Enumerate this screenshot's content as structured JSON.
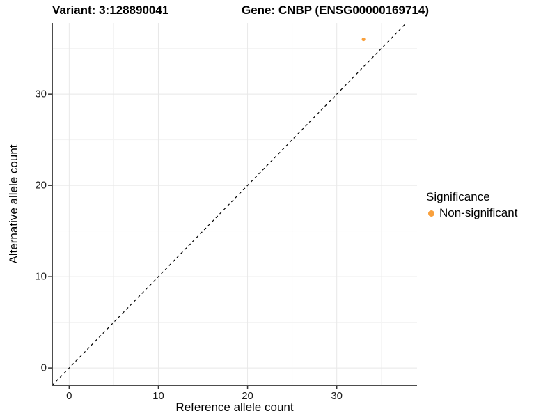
{
  "chart_data": {
    "type": "scatter",
    "title_left": "Variant: 3:128890041",
    "title_right": "Gene: CNBP (ENSG00000169714)",
    "xlabel": "Reference allele count",
    "ylabel": "Alternative allele count",
    "xlim": [
      -1.9,
      39.0
    ],
    "ylim": [
      -1.9,
      37.8
    ],
    "x_major_ticks": [
      0,
      10,
      20,
      30
    ],
    "y_major_ticks": [
      0,
      10,
      20,
      30
    ],
    "x_minor_ticks": [
      5,
      15,
      25,
      35
    ],
    "y_minor_ticks": [
      5,
      15,
      25,
      35
    ],
    "grid": true,
    "identity_line": {
      "equation": "y = x",
      "style": "dashed",
      "color": "#000000"
    },
    "series": [
      {
        "name": "Non-significant",
        "color": "#F9A03C",
        "points": [
          {
            "x": 33,
            "y": 36
          }
        ]
      }
    ],
    "legend": {
      "title": "Significance",
      "position": "right",
      "items": [
        {
          "label": "Non-significant",
          "color": "#F9A03C"
        }
      ]
    },
    "colors": {
      "background": "#FFFFFF",
      "axis_line": "#4D4D4D",
      "tick_mark": "#333333",
      "grid_major": "#E8E8E8",
      "grid_minor": "#F3F3F3",
      "text": "#000000"
    }
  }
}
